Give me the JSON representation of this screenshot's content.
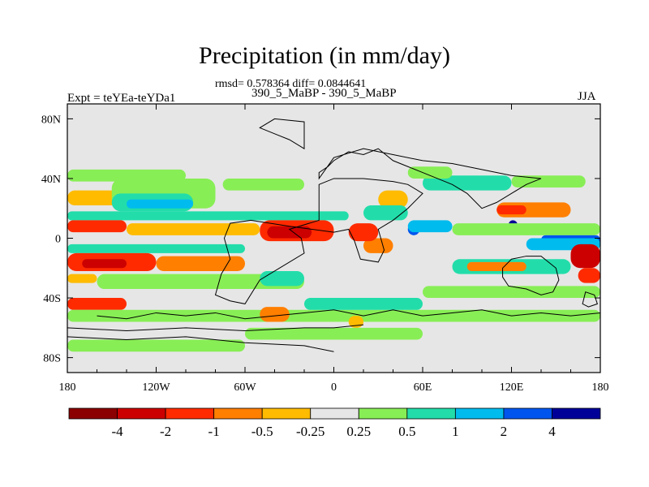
{
  "chart_data": {
    "type": "heatmap",
    "title": "Precipitation (in mm/day)",
    "stats_line": "rmsd= 0.578364 diff= 0.0844641",
    "subtitle": "390_5_MaBP - 390_5_MaBP",
    "left_label": "Expt = teYEa-teYDa1",
    "right_label": "JJA",
    "xlim": [
      -180,
      180
    ],
    "ylim": [
      -90,
      90
    ],
    "x_ticks": [
      {
        "value": -180,
        "label": "180"
      },
      {
        "value": -120,
        "label": "120W"
      },
      {
        "value": -60,
        "label": "60W"
      },
      {
        "value": 0,
        "label": "0"
      },
      {
        "value": 60,
        "label": "60E"
      },
      {
        "value": 120,
        "label": "120E"
      },
      {
        "value": 180,
        "label": "180"
      }
    ],
    "y_ticks": [
      {
        "value": 80,
        "label": "80N"
      },
      {
        "value": 40,
        "label": "40N"
      },
      {
        "value": 0,
        "label": "0"
      },
      {
        "value": -40,
        "label": "40S"
      },
      {
        "value": -80,
        "label": "80S"
      }
    ],
    "colorbar": {
      "colors": [
        "#8b0000",
        "#cc0000",
        "#ff2a00",
        "#ff7f00",
        "#ffbb00",
        "#e6e6e6",
        "#88ee55",
        "#22ddaa",
        "#00bbee",
        "#0055ee",
        "#000099"
      ],
      "labels": [
        "-4",
        "-2",
        "-1",
        "-0.5",
        "-0.25",
        "0.25",
        "0.5",
        "1",
        "2",
        "4"
      ]
    },
    "regions": [
      {
        "level": 4,
        "lon": [
          -180,
          -140
        ],
        "lat": [
          22,
          32
        ]
      },
      {
        "level": 6,
        "lon": [
          -180,
          -100
        ],
        "lat": [
          38,
          46
        ]
      },
      {
        "level": 6,
        "lon": [
          -150,
          -80
        ],
        "lat": [
          20,
          40
        ]
      },
      {
        "level": 7,
        "lon": [
          -150,
          -95
        ],
        "lat": [
          18,
          30
        ]
      },
      {
        "level": 8,
        "lon": [
          -140,
          -95
        ],
        "lat": [
          20,
          26
        ]
      },
      {
        "level": 6,
        "lon": [
          -75,
          -20
        ],
        "lat": [
          32,
          40
        ]
      },
      {
        "level": 7,
        "lon": [
          -180,
          10
        ],
        "lat": [
          12,
          18
        ]
      },
      {
        "level": 2,
        "lon": [
          -180,
          -140
        ],
        "lat": [
          4,
          12
        ]
      },
      {
        "level": 2,
        "lon": [
          -50,
          0
        ],
        "lat": [
          -2,
          12
        ]
      },
      {
        "level": 1,
        "lon": [
          -45,
          -15
        ],
        "lat": [
          0,
          8
        ]
      },
      {
        "level": 4,
        "lon": [
          -140,
          -50
        ],
        "lat": [
          2,
          10
        ]
      },
      {
        "level": 7,
        "lon": [
          -180,
          -60
        ],
        "lat": [
          -10,
          -4
        ]
      },
      {
        "level": 2,
        "lon": [
          -180,
          -120
        ],
        "lat": [
          -22,
          -10
        ]
      },
      {
        "level": 1,
        "lon": [
          -170,
          -140
        ],
        "lat": [
          -20,
          -14
        ]
      },
      {
        "level": 3,
        "lon": [
          -120,
          -60
        ],
        "lat": [
          -22,
          -12
        ]
      },
      {
        "level": 4,
        "lon": [
          -180,
          -160
        ],
        "lat": [
          -30,
          -24
        ]
      },
      {
        "level": 6,
        "lon": [
          -160,
          -20
        ],
        "lat": [
          -34,
          -24
        ]
      },
      {
        "level": 7,
        "lon": [
          -50,
          -20
        ],
        "lat": [
          -32,
          -22
        ]
      },
      {
        "level": 2,
        "lon": [
          -180,
          -140
        ],
        "lat": [
          -48,
          -40
        ]
      },
      {
        "level": 6,
        "lon": [
          -180,
          180
        ],
        "lat": [
          -56,
          -48
        ]
      },
      {
        "level": 7,
        "lon": [
          -20,
          60
        ],
        "lat": [
          -48,
          -40
        ]
      },
      {
        "level": 3,
        "lon": [
          -50,
          -30
        ],
        "lat": [
          -56,
          -46
        ]
      },
      {
        "level": 4,
        "lon": [
          10,
          20
        ],
        "lat": [
          -60,
          -52
        ]
      },
      {
        "level": 6,
        "lon": [
          -180,
          -60
        ],
        "lat": [
          -76,
          -68
        ]
      },
      {
        "level": 6,
        "lon": [
          -60,
          60
        ],
        "lat": [
          -68,
          -60
        ]
      },
      {
        "level": 3,
        "lon": [
          20,
          40
        ],
        "lat": [
          -10,
          0
        ]
      },
      {
        "level": 2,
        "lon": [
          10,
          30
        ],
        "lat": [
          -2,
          10
        ]
      },
      {
        "level": 4,
        "lon": [
          30,
          50
        ],
        "lat": [
          20,
          32
        ]
      },
      {
        "level": 7,
        "lon": [
          20,
          50
        ],
        "lat": [
          12,
          22
        ]
      },
      {
        "level": 9,
        "lon": [
          50,
          58
        ],
        "lat": [
          2,
          10
        ]
      },
      {
        "level": 8,
        "lon": [
          50,
          80
        ],
        "lat": [
          4,
          12
        ]
      },
      {
        "level": 7,
        "lon": [
          60,
          120
        ],
        "lat": [
          32,
          42
        ]
      },
      {
        "level": 6,
        "lon": [
          50,
          80
        ],
        "lat": [
          40,
          48
        ]
      },
      {
        "level": 6,
        "lon": [
          120,
          170
        ],
        "lat": [
          34,
          42
        ]
      },
      {
        "level": 3,
        "lon": [
          110,
          160
        ],
        "lat": [
          14,
          24
        ]
      },
      {
        "level": 2,
        "lon": [
          110,
          130
        ],
        "lat": [
          16,
          22
        ]
      },
      {
        "level": 10,
        "lon": [
          118,
          124
        ],
        "lat": [
          6,
          12
        ]
      },
      {
        "level": 6,
        "lon": [
          80,
          180
        ],
        "lat": [
          2,
          10
        ]
      },
      {
        "level": 9,
        "lon": [
          140,
          180
        ],
        "lat": [
          -4,
          2
        ]
      },
      {
        "level": 8,
        "lon": [
          130,
          180
        ],
        "lat": [
          -8,
          0
        ]
      },
      {
        "level": 1,
        "lon": [
          160,
          180
        ],
        "lat": [
          -20,
          -4
        ]
      },
      {
        "level": 2,
        "lon": [
          165,
          180
        ],
        "lat": [
          -30,
          -20
        ]
      },
      {
        "level": 7,
        "lon": [
          80,
          160
        ],
        "lat": [
          -24,
          -14
        ]
      },
      {
        "level": 3,
        "lon": [
          90,
          130
        ],
        "lat": [
          -22,
          -16
        ]
      },
      {
        "level": 6,
        "lon": [
          60,
          180
        ],
        "lat": [
          -40,
          -32
        ]
      }
    ],
    "coast_lines": [
      [
        [
          -160,
          -52
        ],
        [
          -140,
          -54
        ],
        [
          -120,
          -50
        ],
        [
          -100,
          -52
        ],
        [
          -80,
          -50
        ],
        [
          -60,
          -54
        ],
        [
          -40,
          -52
        ],
        [
          -20,
          -50
        ],
        [
          0,
          -48
        ],
        [
          20,
          -52
        ],
        [
          40,
          -48
        ],
        [
          60,
          -52
        ],
        [
          80,
          -50
        ],
        [
          100,
          -48
        ],
        [
          120,
          -52
        ],
        [
          140,
          -50
        ],
        [
          160,
          -52
        ],
        [
          180,
          -50
        ]
      ],
      [
        [
          -180,
          -60
        ],
        [
          -140,
          -62
        ],
        [
          -100,
          -60
        ],
        [
          -60,
          -62
        ],
        [
          -20,
          -60
        ],
        [
          0,
          -60
        ],
        [
          20,
          -58
        ]
      ],
      [
        [
          -180,
          -66
        ],
        [
          -140,
          -68
        ],
        [
          -100,
          -66
        ],
        [
          -60,
          -70
        ],
        [
          -20,
          -72
        ],
        [
          0,
          -76
        ]
      ]
    ],
    "land_outlines": [
      [
        [
          -10,
          36
        ],
        [
          -10,
          12
        ],
        [
          -30,
          6
        ],
        [
          -22,
          0
        ],
        [
          -20,
          -10
        ],
        [
          -40,
          -22
        ],
        [
          -50,
          -28
        ],
        [
          -60,
          -44
        ],
        [
          -70,
          -42
        ],
        [
          -80,
          -38
        ],
        [
          -76,
          -24
        ],
        [
          -70,
          -14
        ],
        [
          -74,
          0
        ],
        [
          -70,
          10
        ],
        [
          -56,
          12
        ],
        [
          -30,
          8
        ],
        [
          0,
          4
        ],
        [
          10,
          6
        ],
        [
          14,
          -2
        ],
        [
          18,
          -14
        ],
        [
          30,
          -16
        ],
        [
          34,
          -8
        ],
        [
          30,
          6
        ],
        [
          40,
          12
        ],
        [
          50,
          20
        ],
        [
          60,
          30
        ],
        [
          50,
          36
        ],
        [
          40,
          38
        ],
        [
          20,
          40
        ],
        [
          0,
          40
        ],
        [
          -10,
          36
        ]
      ],
      [
        [
          -10,
          40
        ],
        [
          -10,
          44
        ],
        [
          -4,
          48
        ],
        [
          0,
          52
        ],
        [
          10,
          58
        ],
        [
          20,
          56
        ],
        [
          30,
          60
        ],
        [
          40,
          52
        ],
        [
          50,
          48
        ],
        [
          60,
          44
        ],
        [
          70,
          40
        ],
        [
          80,
          36
        ],
        [
          90,
          30
        ],
        [
          100,
          20
        ],
        [
          110,
          24
        ],
        [
          120,
          30
        ],
        [
          130,
          36
        ],
        [
          140,
          40
        ],
        [
          120,
          42
        ],
        [
          100,
          46
        ],
        [
          80,
          50
        ],
        [
          60,
          52
        ],
        [
          40,
          56
        ],
        [
          20,
          60
        ],
        [
          0,
          54
        ],
        [
          -10,
          40
        ]
      ],
      [
        [
          120,
          -14
        ],
        [
          130,
          -12
        ],
        [
          140,
          -12
        ],
        [
          150,
          -20
        ],
        [
          152,
          -28
        ],
        [
          148,
          -36
        ],
        [
          140,
          -38
        ],
        [
          130,
          -34
        ],
        [
          118,
          -32
        ],
        [
          114,
          -26
        ],
        [
          114,
          -20
        ],
        [
          120,
          -14
        ]
      ],
      [
        [
          -20,
          60
        ],
        [
          -30,
          66
        ],
        [
          -40,
          70
        ],
        [
          -50,
          74
        ],
        [
          -40,
          80
        ],
        [
          -20,
          78
        ],
        [
          -20,
          60
        ]
      ],
      [
        [
          170,
          -36
        ],
        [
          176,
          -38
        ],
        [
          178,
          -44
        ],
        [
          172,
          -46
        ],
        [
          168,
          -44
        ],
        [
          170,
          -36
        ]
      ]
    ]
  }
}
